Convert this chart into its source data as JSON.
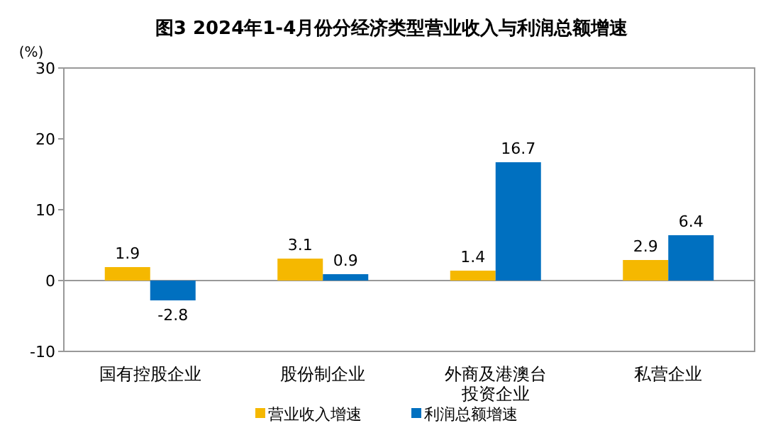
{
  "chart_data": {
    "type": "bar",
    "title": "图3  2024年1-4月份分经济类型营业收入与利润总额增速",
    "ylabel": "(%)",
    "categories": [
      "国有控股企业",
      "股份制企业",
      "外商及港澳台投资企业",
      "私营企业"
    ],
    "series": [
      {
        "name": "营业收入增速",
        "color": "#f5b800",
        "values": [
          1.9,
          3.1,
          1.4,
          2.9
        ]
      },
      {
        "name": "利润总额增速",
        "color": "#0070c0",
        "values": [
          -2.8,
          0.9,
          16.7,
          6.4
        ]
      }
    ],
    "ylim": [
      -10,
      30
    ],
    "yticks": [
      -10,
      0,
      10,
      20,
      30
    ],
    "legend": "bottom",
    "data_labels": true
  }
}
